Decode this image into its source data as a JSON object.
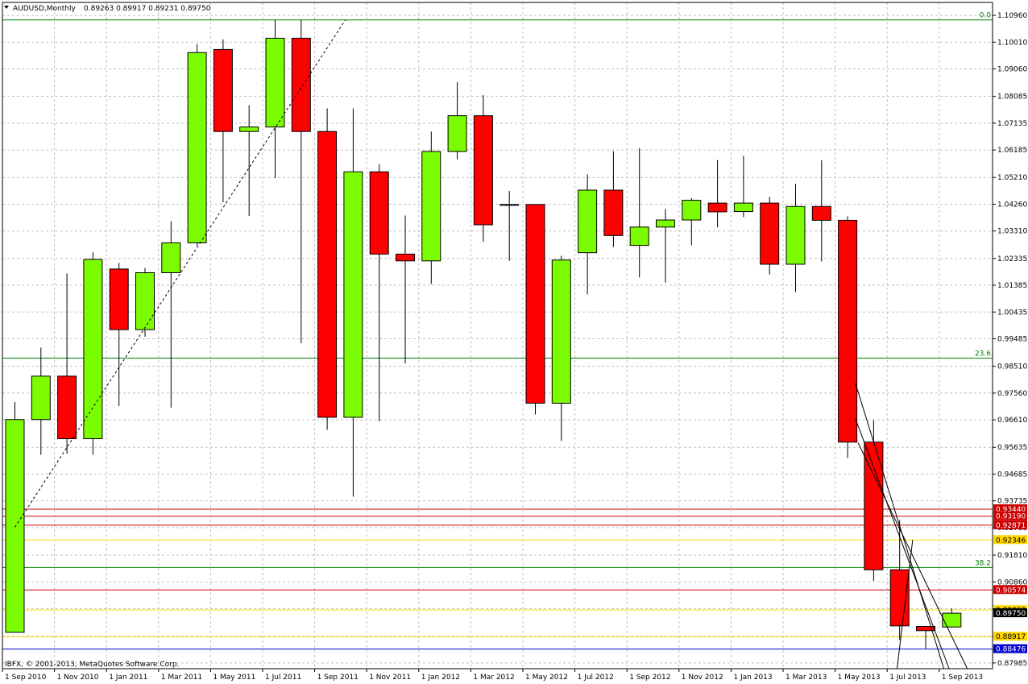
{
  "header": {
    "collapse_icon": "triangle-down-icon",
    "symbol": "AUDUSD,Monthly",
    "ohlc": "0.89263 0.89917 0.89231 0.89750"
  },
  "footer": {
    "copyright": "IBFX, © 2001-2013, MetaQuotes Software Corp."
  },
  "colors": {
    "bull": "#7CFC00",
    "bear": "#FF0000",
    "fib": "#008000",
    "red_level": "#CC0000",
    "gold_level": "#FFD700",
    "current_level": "#000000",
    "blue_level": "#0000CC",
    "grid": "#C0C0C0"
  },
  "chart_data": {
    "type": "candlestick",
    "symbol": "AUDUSD",
    "timeframe": "Monthly",
    "ylim": [
      0.8778,
      1.1142
    ],
    "y_ticks": [
      "1.10960",
      "1.10010",
      "1.09060",
      "1.08085",
      "1.07135",
      "1.06185",
      "1.05210",
      "1.04260",
      "1.03310",
      "1.02335",
      "1.01385",
      "1.00435",
      "0.99485",
      "0.98510",
      "0.97560",
      "0.96610",
      "0.95635",
      "0.94685",
      "0.93735",
      "0.92785",
      "0.91810",
      "0.90860",
      "0.89910",
      "0.88935",
      "0.87985"
    ],
    "x_ticks": [
      "1 Sep 2010",
      "1 Nov 2010",
      "1 Jan 2011",
      "1 Mar 2011",
      "1 May 2011",
      "1 Jul 2011",
      "1 Sep 2011",
      "1 Nov 2011",
      "1 Jan 2012",
      "1 Mar 2012",
      "1 May 2012",
      "1 Jul 2012",
      "1 Sep 2012",
      "1 Nov 2012",
      "1 Jan 2013",
      "1 Mar 2013",
      "1 May 2013",
      "1 Jul 2013",
      "1 Sep 2013"
    ],
    "candles": [
      {
        "o": 0.8907,
        "h": 0.9724,
        "l": 0.8907,
        "c": 0.9662
      },
      {
        "o": 0.9662,
        "h": 0.9917,
        "l": 0.9537,
        "c": 0.9816
      },
      {
        "o": 0.9816,
        "h": 1.018,
        "l": 0.9541,
        "c": 0.9594
      },
      {
        "o": 0.9594,
        "h": 1.0255,
        "l": 0.9537,
        "c": 1.023
      },
      {
        "o": 1.0196,
        "h": 1.0218,
        "l": 0.971,
        "c": 0.9981
      },
      {
        "o": 0.9981,
        "h": 1.02,
        "l": 0.9956,
        "c": 1.0183
      },
      {
        "o": 1.0183,
        "h": 1.0366,
        "l": 0.9704,
        "c": 1.0289
      },
      {
        "o": 1.0289,
        "h": 1.0994,
        "l": 1.0279,
        "c": 1.0964
      },
      {
        "o": 1.0975,
        "h": 1.1011,
        "l": 1.0433,
        "c": 1.0684
      },
      {
        "o": 1.0684,
        "h": 1.0777,
        "l": 1.0385,
        "c": 1.07
      },
      {
        "o": 1.07,
        "h": 1.108,
        "l": 1.0518,
        "c": 1.1015
      },
      {
        "o": 1.1015,
        "h": 1.108,
        "l": 0.9933,
        "c": 1.0684
      },
      {
        "o": 1.0684,
        "h": 1.0766,
        "l": 0.9626,
        "c": 0.967
      },
      {
        "o": 0.967,
        "h": 1.0766,
        "l": 0.9388,
        "c": 1.0541
      },
      {
        "o": 1.0541,
        "h": 1.0568,
        "l": 0.9656,
        "c": 1.0249
      },
      {
        "o": 1.0249,
        "h": 1.0386,
        "l": 0.9861,
        "c": 1.0225
      },
      {
        "o": 1.0225,
        "h": 1.0684,
        "l": 1.0143,
        "c": 1.0613
      },
      {
        "o": 1.0613,
        "h": 1.0859,
        "l": 1.0585,
        "c": 1.074
      },
      {
        "o": 1.074,
        "h": 1.0813,
        "l": 1.0293,
        "c": 1.0353
      },
      {
        "o": 1.0425,
        "h": 1.0473,
        "l": 1.0225,
        "c": 1.0425
      },
      {
        "o": 1.0425,
        "h": 1.0425,
        "l": 0.968,
        "c": 0.972
      },
      {
        "o": 0.972,
        "h": 1.0243,
        "l": 0.9586,
        "c": 1.0228
      },
      {
        "o": 1.0254,
        "h": 1.0532,
        "l": 1.0106,
        "c": 1.0476
      },
      {
        "o": 1.0476,
        "h": 1.0614,
        "l": 1.0274,
        "c": 1.0315
      },
      {
        "o": 1.028,
        "h": 1.0625,
        "l": 1.0166,
        "c": 1.0345
      },
      {
        "o": 1.0345,
        "h": 1.0409,
        "l": 1.0148,
        "c": 1.037
      },
      {
        "o": 1.037,
        "h": 1.0448,
        "l": 1.028,
        "c": 1.044
      },
      {
        "o": 1.043,
        "h": 1.0583,
        "l": 1.0344,
        "c": 1.0399
      },
      {
        "o": 1.04,
        "h": 1.0598,
        "l": 1.038,
        "c": 1.043
      },
      {
        "o": 1.043,
        "h": 1.0452,
        "l": 1.0177,
        "c": 1.0213
      },
      {
        "o": 1.0213,
        "h": 1.0498,
        "l": 1.0114,
        "c": 1.0418
      },
      {
        "o": 1.0418,
        "h": 1.0582,
        "l": 1.0223,
        "c": 1.0369
      },
      {
        "o": 1.0369,
        "h": 1.0383,
        "l": 0.9525,
        "c": 0.9582
      },
      {
        "o": 0.9582,
        "h": 0.966,
        "l": 0.909,
        "c": 0.9129
      },
      {
        "o": 0.9129,
        "h": 0.9305,
        "l": 0.888,
        "c": 0.893
      },
      {
        "o": 0.8928,
        "h": 0.8913,
        "l": 0.8849,
        "c": 0.8913
      },
      {
        "o": 0.8926,
        "h": 0.8992,
        "l": 0.8923,
        "c": 0.8975
      }
    ],
    "horizontal_levels": [
      {
        "label": "0.0",
        "value": 1.108,
        "kind": "fib"
      },
      {
        "label": "23.6",
        "value": 0.988,
        "kind": "fib"
      },
      {
        "label": "38.2",
        "value": 0.9137,
        "kind": "fib"
      },
      {
        "label": "0.93440",
        "value": 0.9344,
        "kind": "red"
      },
      {
        "label": "0.93190",
        "value": 0.9319,
        "kind": "red"
      },
      {
        "label": "0.92871",
        "value": 0.92871,
        "kind": "red"
      },
      {
        "label": "0.92346",
        "value": 0.92346,
        "kind": "gold"
      },
      {
        "label": "0.90574",
        "value": 0.90574,
        "kind": "red"
      },
      {
        "label": "0.89862",
        "value": 0.89862,
        "kind": "gold"
      },
      {
        "label": "0.88917",
        "value": 0.88917,
        "kind": "gold"
      },
      {
        "label": "0.88476",
        "value": 0.88476,
        "kind": "blue"
      }
    ],
    "current_price": 0.8975,
    "trendlines": [
      {
        "style": "dashed",
        "from": {
          "bar": 0,
          "price": 0.928
        },
        "to": {
          "bar": 12.7,
          "price": 1.108
        }
      },
      {
        "style": "solid",
        "from": {
          "bar": 32.3,
          "price": 0.9791
        },
        "to": {
          "bar": 35.7,
          "price": 0.8778
        }
      },
      {
        "style": "solid",
        "from": {
          "bar": 32.3,
          "price": 0.9665
        },
        "to": {
          "bar": 35.9,
          "price": 0.8778
        }
      },
      {
        "style": "solid",
        "from": {
          "bar": 32.4,
          "price": 0.958
        },
        "to": {
          "bar": 36.6,
          "price": 0.8778
        }
      },
      {
        "style": "solid",
        "from": {
          "bar": 34.5,
          "price": 0.9235
        },
        "to": {
          "bar": 33.9,
          "price": 0.8778
        }
      }
    ]
  }
}
